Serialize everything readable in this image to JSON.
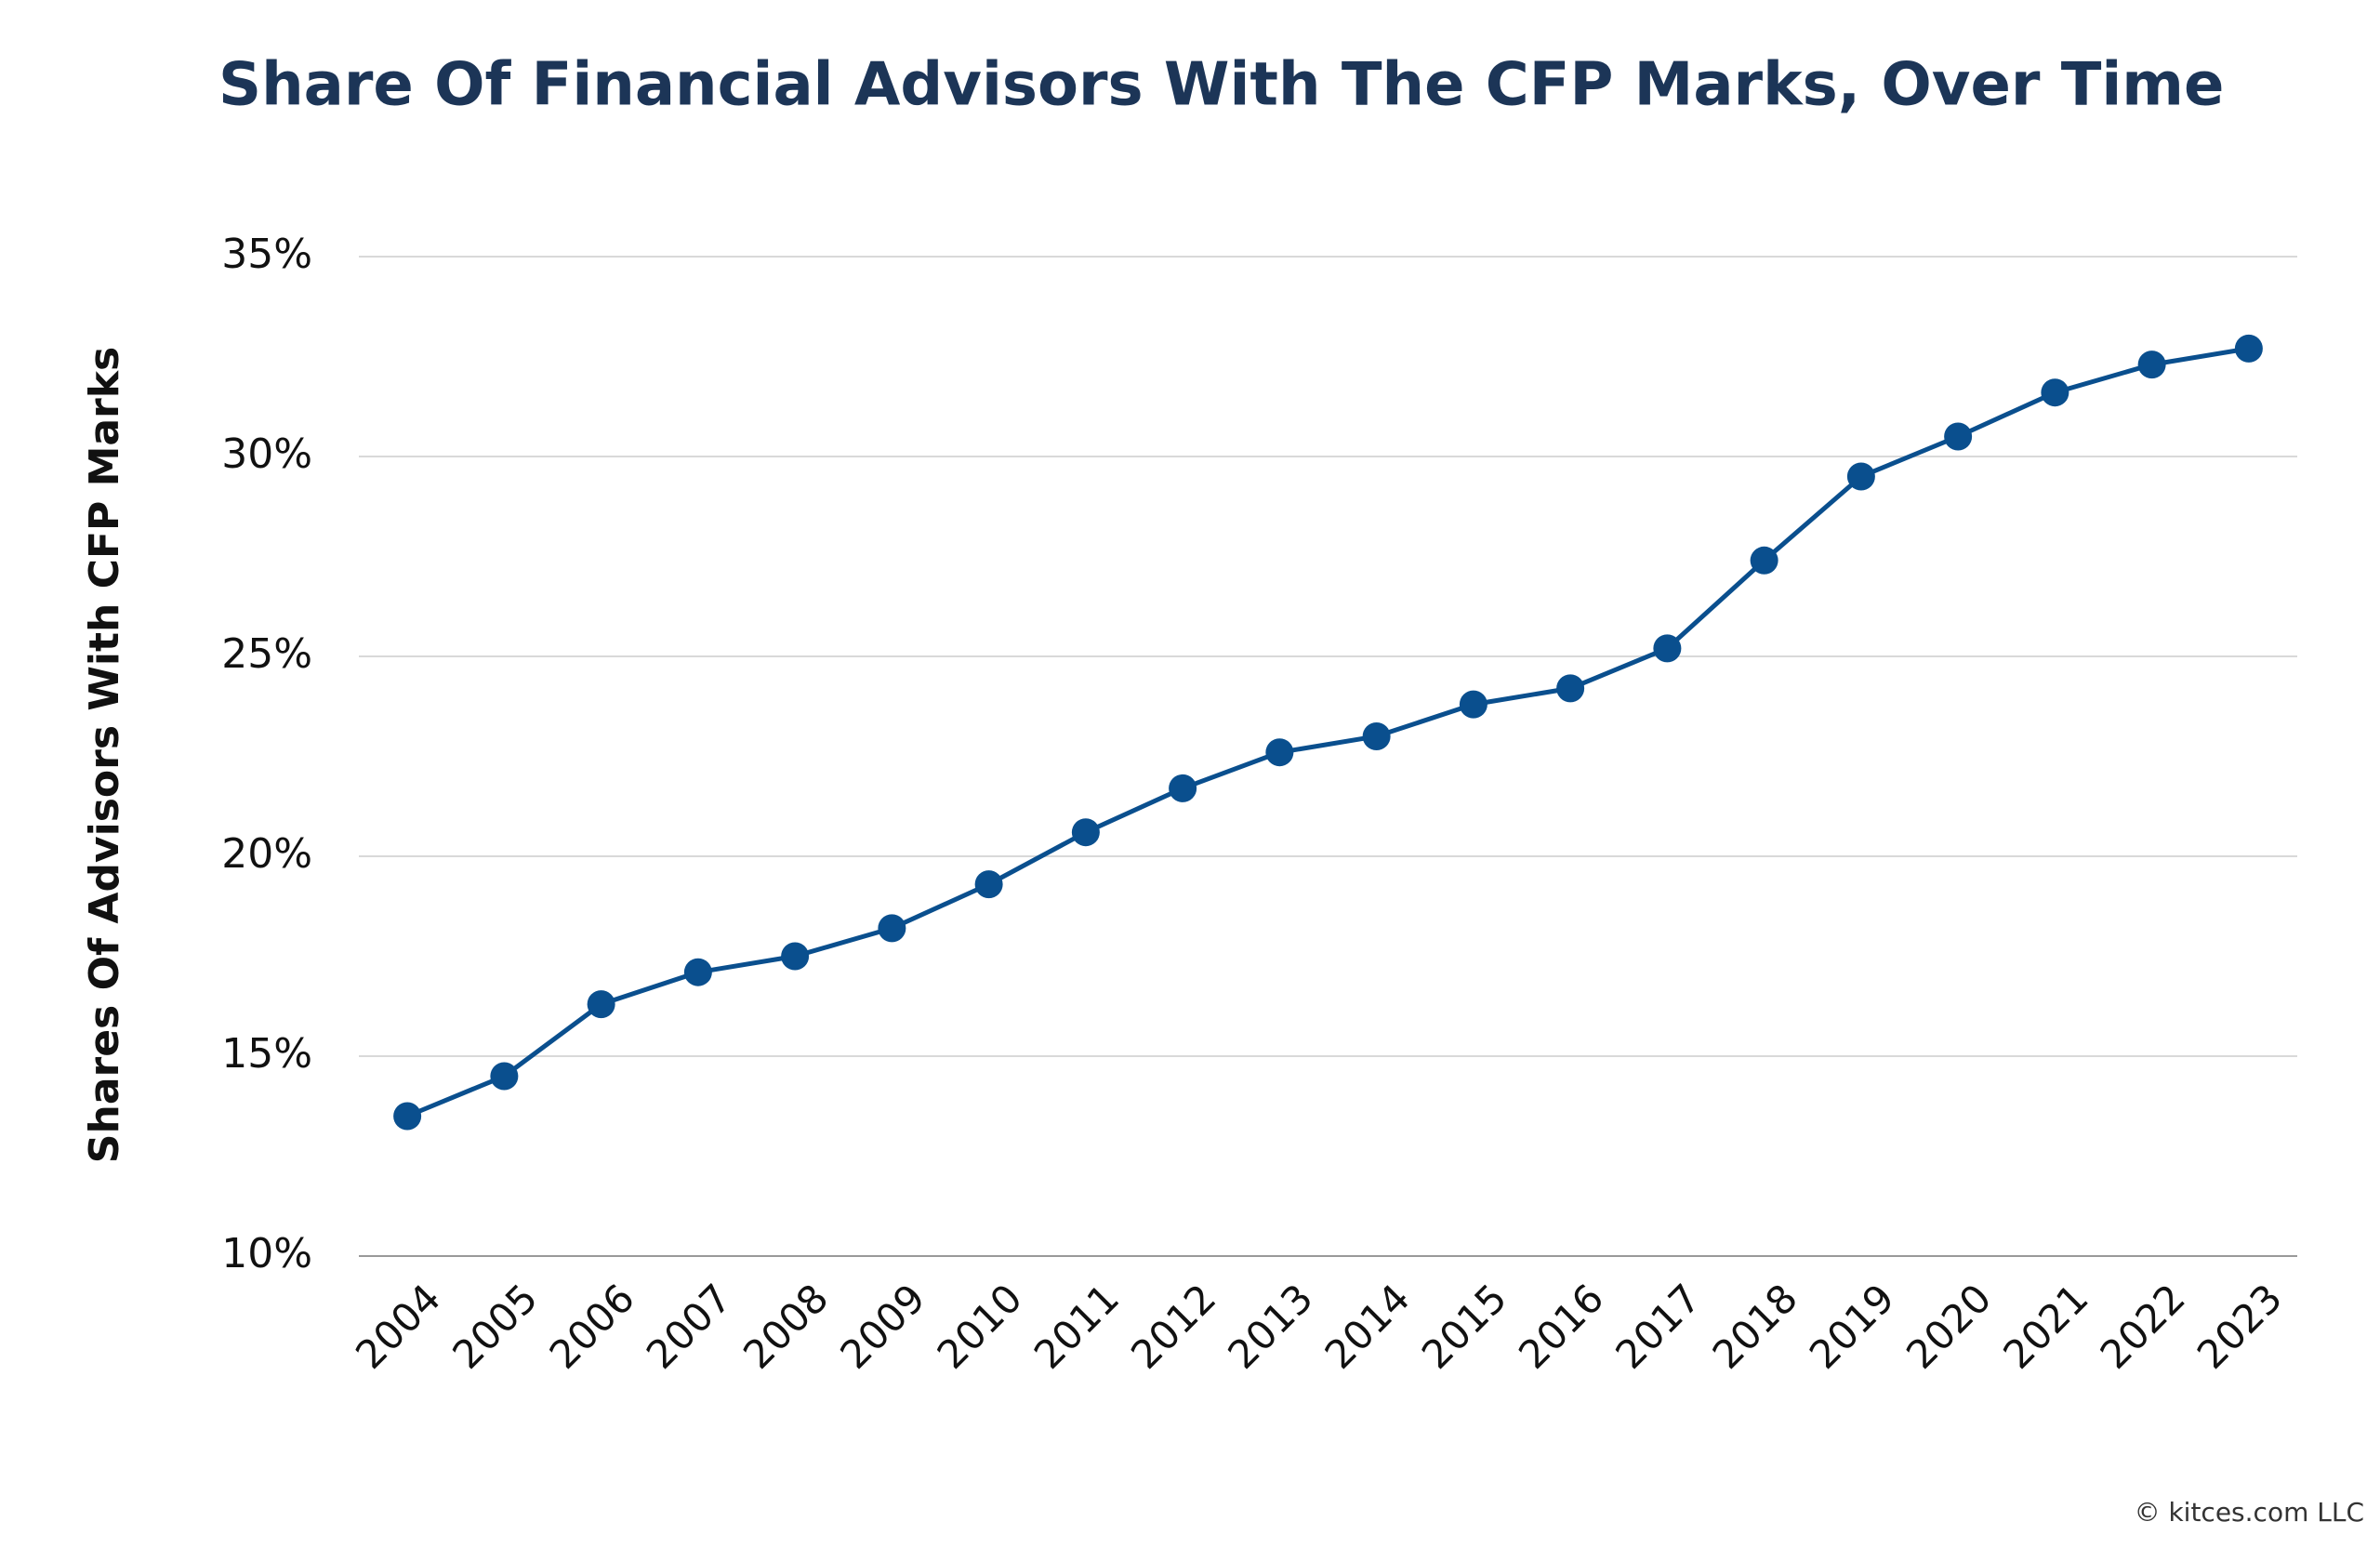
{
  "chart_data": {
    "type": "line",
    "title": "Share Of Financial Advisors With The CFP Marks, Over Time",
    "y_label": "Shares Of Advisors With CFP Marks",
    "footer": "© kitces.com LLC",
    "categories": [
      "2004",
      "2005",
      "2006",
      "2007",
      "2008",
      "2009",
      "2010",
      "2011",
      "2012",
      "2013",
      "2014",
      "2015",
      "2016",
      "2017",
      "2018",
      "2019",
      "2020",
      "2021",
      "2022",
      "2023"
    ],
    "series": [
      {
        "color": "#0a4f8e",
        "values": [
          13.5,
          14.5,
          16.3,
          17.1,
          17.5,
          18.2,
          19.3,
          20.6,
          21.7,
          22.6,
          23.0,
          23.8,
          24.2,
          25.2,
          27.4,
          29.5,
          30.5,
          31.6,
          32.3,
          32.7
        ]
      }
    ],
    "ylim": [
      10,
      35
    ],
    "yticks": [
      {
        "value": 10,
        "label": "10%"
      },
      {
        "value": 15,
        "label": "15%"
      },
      {
        "value": 20,
        "label": "20%"
      },
      {
        "value": 25,
        "label": "25%"
      },
      {
        "value": 30,
        "label": "30%"
      },
      {
        "value": 35,
        "label": "35%"
      }
    ],
    "grid": true
  }
}
